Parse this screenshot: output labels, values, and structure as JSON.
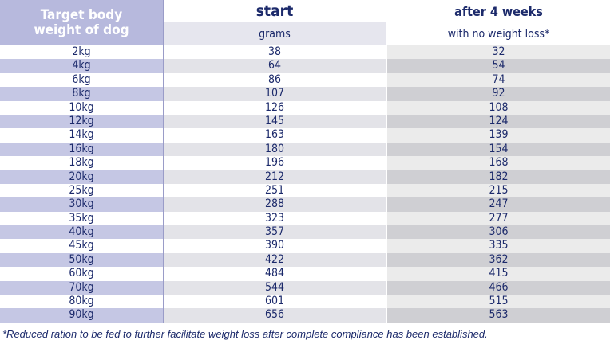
{
  "header": {
    "col1_line1": "Target body",
    "col1_line2": "weight of dog",
    "col2_title": "start",
    "col2_sub": "grams",
    "col3_title": "after 4 weeks",
    "col3_sub": "with no weight loss*"
  },
  "rows": [
    {
      "weight": "2kg",
      "start": "38",
      "after": "32"
    },
    {
      "weight": "4kg",
      "start": "64",
      "after": "54"
    },
    {
      "weight": "6kg",
      "start": "86",
      "after": "74"
    },
    {
      "weight": "8kg",
      "start": "107",
      "after": "92"
    },
    {
      "weight": "10kg",
      "start": "126",
      "after": "108"
    },
    {
      "weight": "12kg",
      "start": "145",
      "after": "124"
    },
    {
      "weight": "14kg",
      "start": "163",
      "after": "139"
    },
    {
      "weight": "16kg",
      "start": "180",
      "after": "154"
    },
    {
      "weight": "18kg",
      "start": "196",
      "after": "168"
    },
    {
      "weight": "20kg",
      "start": "212",
      "after": "182"
    },
    {
      "weight": "25kg",
      "start": "251",
      "after": "215"
    },
    {
      "weight": "30kg",
      "start": "288",
      "after": "247"
    },
    {
      "weight": "35kg",
      "start": "323",
      "after": "277"
    },
    {
      "weight": "40kg",
      "start": "357",
      "after": "306"
    },
    {
      "weight": "45kg",
      "start": "390",
      "after": "335"
    },
    {
      "weight": "50kg",
      "start": "422",
      "after": "362"
    },
    {
      "weight": "60kg",
      "start": "484",
      "after": "415"
    },
    {
      "weight": "70kg",
      "start": "544",
      "after": "466"
    },
    {
      "weight": "80kg",
      "start": "601",
      "after": "515"
    },
    {
      "weight": "90kg",
      "start": "656",
      "after": "563"
    }
  ],
  "footnote": "*Reduced ration to be fed to further facilitate weight loss after complete compliance has been established.",
  "colors": {
    "text": "#1c2a6b",
    "header_col1": "#b7b9dd",
    "stripe_col1": "#c5c7e4"
  }
}
